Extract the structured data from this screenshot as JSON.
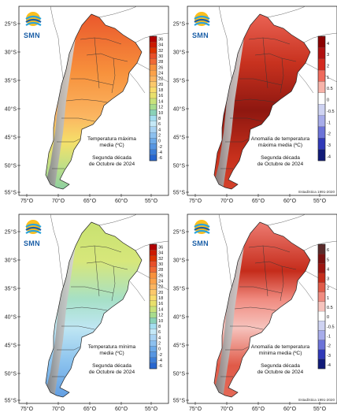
{
  "brand": "SMN",
  "lat_labels": [
    "25°S",
    "30°S",
    "35°S",
    "40°S",
    "45°S",
    "50°S",
    "55°S"
  ],
  "lon_labels": [
    "75°O",
    "70°O",
    "65°O",
    "60°O",
    "55°O"
  ],
  "panels": [
    {
      "title_lines": [
        "Temperatura máxima",
        "media (ºC)"
      ],
      "subtitle_lines": [
        "Segunda década",
        "de Octubre de 2024"
      ],
      "legend_labels": [
        "36",
        "34",
        "32",
        "30",
        "28",
        "26",
        "24",
        "22",
        "20",
        "18",
        "16",
        "14",
        "12",
        "10",
        "8",
        "6",
        "4",
        "2",
        "0",
        "-2",
        "-4",
        "-6"
      ],
      "footer": ""
    },
    {
      "title_lines": [
        "Anomalía de temperatura",
        "máxima media (ºC)"
      ],
      "subtitle_lines": [
        "Segunda década",
        "de Octubre de 2024"
      ],
      "legend_labels": [
        "4",
        "3",
        "2",
        "1",
        "0.5",
        "0",
        "-0.5",
        "-1",
        "-2",
        "-3",
        "-4"
      ],
      "footer": "Estadística 1991-2020"
    },
    {
      "title_lines": [
        "Temperatura mínima",
        "media (ºC)"
      ],
      "subtitle_lines": [
        "Segunda década",
        "de Octubre de 2024"
      ],
      "legend_labels": [
        "36",
        "34",
        "32",
        "30",
        "28",
        "26",
        "24",
        "22",
        "20",
        "18",
        "16",
        "14",
        "12",
        "10",
        "8",
        "6",
        "4",
        "2",
        "0",
        "-2",
        "-4",
        "-6"
      ],
      "footer": ""
    },
    {
      "title_lines": [
        "Anomalía de temperatura",
        "mínima media (ºC)"
      ],
      "subtitle_lines": [
        "Segunda década",
        "de Octubre de 2024"
      ],
      "legend_labels": [
        "6",
        "5",
        "4",
        "3",
        "2",
        "1",
        "0.5",
        "0",
        "-0.5",
        "-1",
        "-2",
        "-3",
        "-4"
      ],
      "footer": "Estadística 1991-2020"
    }
  ]
}
